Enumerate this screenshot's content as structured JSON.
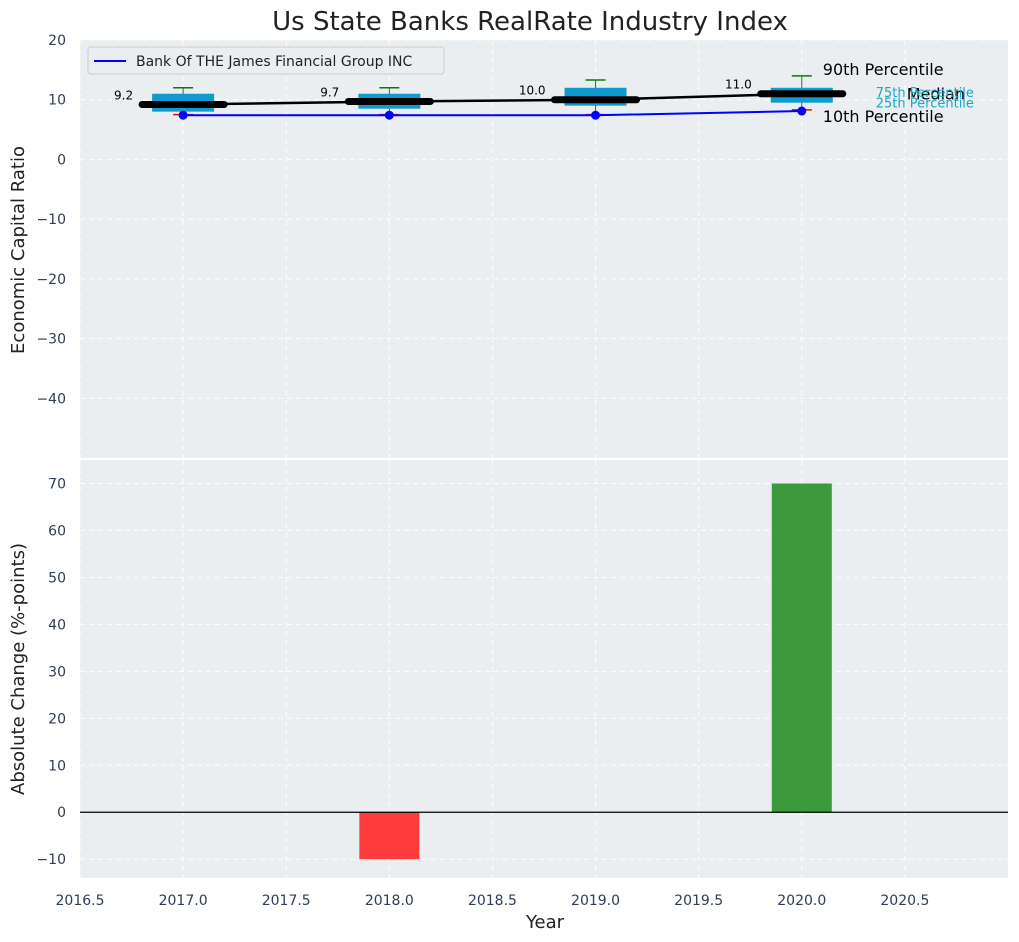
{
  "chart_data": [
    {
      "type": "box",
      "title": "Us State Banks RealRate Industry Index",
      "xlabel": "",
      "ylabel": "Economic Capital Ratio",
      "ylim": [
        -50,
        20
      ],
      "xlim": [
        2016.5,
        2021.0
      ],
      "yticks": [
        20,
        10,
        0,
        -10,
        -20,
        -30,
        -40
      ],
      "grid": true,
      "legend": {
        "position": "top-left",
        "entries": [
          "Bank Of THE James Financial Group INC"
        ]
      },
      "boxes": [
        {
          "x": 2017,
          "p10": 7.5,
          "q1": 8.0,
          "median": 9.2,
          "q3": 11.0,
          "p90": 12.0,
          "median_label": "9.2"
        },
        {
          "x": 2018,
          "p10": 7.5,
          "q1": 8.5,
          "median": 9.7,
          "q3": 11.0,
          "p90": 12.0,
          "median_label": "9.7"
        },
        {
          "x": 2019,
          "p10": 7.5,
          "q1": 9.0,
          "median": 10.0,
          "q3": 12.0,
          "p90": 13.3,
          "median_label": "10.0"
        },
        {
          "x": 2020,
          "p10": 8.3,
          "q1": 9.5,
          "median": 11.0,
          "q3": 12.0,
          "p90": 14.0,
          "median_label": "11.0"
        }
      ],
      "series": [
        {
          "name": "Bank Of THE James Financial Group INC",
          "x": [
            2017,
            2018,
            2019,
            2020
          ],
          "values": [
            7.4,
            7.4,
            7.4,
            8.1
          ],
          "color": "#0000ff"
        }
      ],
      "annotations": {
        "p90": "90th Percentile",
        "median": "Median",
        "p10": "10th Percentile",
        "q3": "75th Percentile",
        "q1": "25th Percentile"
      }
    },
    {
      "type": "bar",
      "xlabel": "Year",
      "ylabel": "Absolute Change (%-points)",
      "ylim": [
        -14,
        75
      ],
      "xlim": [
        2016.5,
        2021.0
      ],
      "yticks": [
        70,
        60,
        50,
        40,
        30,
        20,
        10,
        0,
        -10
      ],
      "xticks": [
        2016.5,
        2017.0,
        2017.5,
        2018.0,
        2018.5,
        2019.0,
        2019.5,
        2020.0,
        2020.5
      ],
      "xtick_labels": [
        "2016.5",
        "2017.0",
        "2017.5",
        "2018.0",
        "2018.5",
        "2019.0",
        "2019.5",
        "2020.0",
        "2020.5"
      ],
      "grid": true,
      "bars": [
        {
          "x": 2018,
          "value": -10,
          "color": "#ff3b3b"
        },
        {
          "x": 2020,
          "value": 70,
          "color": "#3c9a3c"
        }
      ]
    }
  ],
  "colors": {
    "plot_bg": "#eaeef0",
    "box": "#0f9bd0",
    "median_line": "#000000",
    "whisker_top": "#008000",
    "whisker_bottom": "#ff0000",
    "series": "#0000ff",
    "zero_line": "#000000"
  }
}
